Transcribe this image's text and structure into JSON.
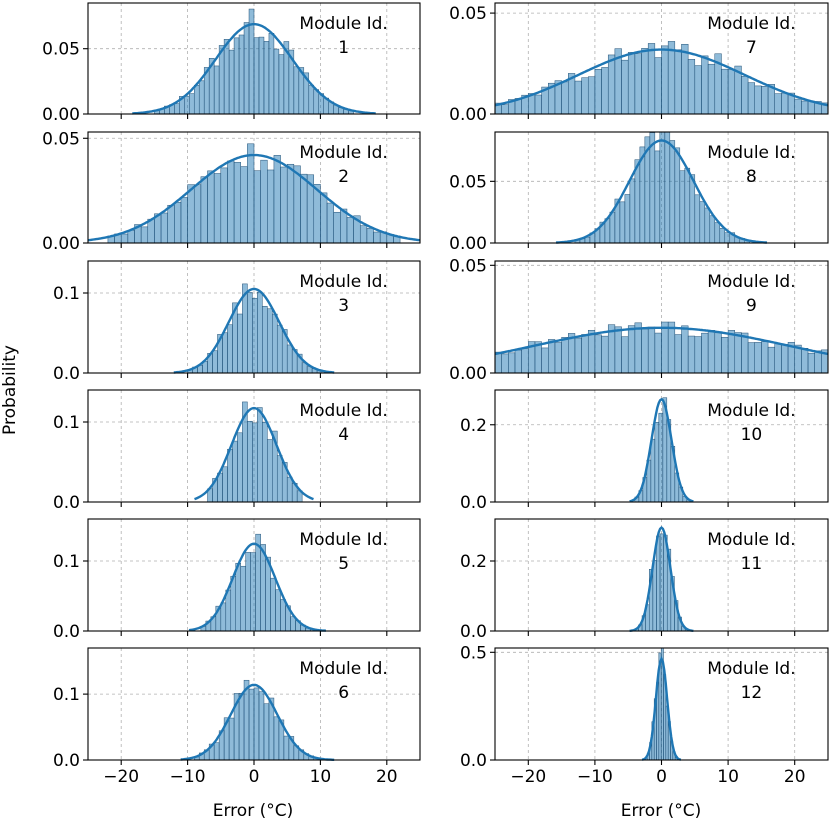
{
  "figure": {
    "y_label": "Probability",
    "x_label": "Error (°C)"
  },
  "chart_data": {
    "type": "histogram-grid",
    "x_range": [
      -25,
      25
    ],
    "x_ticks": [
      -20,
      -10,
      0,
      10,
      20
    ],
    "x_tick_labels": [
      "−20",
      "−10",
      "0",
      "10",
      "20"
    ],
    "xlabel": "Error (°C)",
    "ylabel": "Probability",
    "grid": true,
    "layout": "6 rows x 2 columns",
    "label_prefix": "Module Id.",
    "panels": [
      {
        "module": 1,
        "label_line1": "Module Id.",
        "label_line2": "1",
        "col": 0,
        "row": 0,
        "sigma": 5.8,
        "range": [
          -15,
          15
        ],
        "ylim": [
          0,
          0.085
        ],
        "yticks": [
          0.0,
          0.05
        ],
        "ytick_labels": [
          "0.00",
          "0.05"
        ]
      },
      {
        "module": 2,
        "label_line1": "Module Id.",
        "label_line2": "2",
        "col": 0,
        "row": 1,
        "sigma": 9.5,
        "range": [
          -22,
          22
        ],
        "ylim": [
          0,
          0.053
        ],
        "yticks": [
          0.0,
          0.05
        ],
        "ytick_labels": [
          "0.00",
          "0.05"
        ]
      },
      {
        "module": 3,
        "label_line1": "Module Id.",
        "label_line2": "3",
        "col": 0,
        "row": 2,
        "sigma": 3.8,
        "range": [
          -10,
          10
        ],
        "ylim": [
          0,
          0.14
        ],
        "yticks": [
          0.0,
          0.1
        ],
        "ytick_labels": [
          "0.0",
          "0.1"
        ]
      },
      {
        "module": 4,
        "label_line1": "Module Id.",
        "label_line2": "4",
        "col": 0,
        "row": 3,
        "sigma": 3.4,
        "range": [
          -7,
          7
        ],
        "ylim": [
          0,
          0.14
        ],
        "yticks": [
          0.0,
          0.1
        ],
        "ytick_labels": [
          "0.0",
          "0.1"
        ]
      },
      {
        "module": 5,
        "label_line1": "Module Id.",
        "label_line2": "5",
        "col": 0,
        "row": 4,
        "sigma": 3.2,
        "range": [
          -8,
          9
        ],
        "ylim": [
          0,
          0.16
        ],
        "yticks": [
          0.0,
          0.1
        ],
        "ytick_labels": [
          "0.0",
          "0.1"
        ]
      },
      {
        "module": 6,
        "label_line1": "Module Id.",
        "label_line2": "6",
        "col": 0,
        "row": 5,
        "sigma": 3.5,
        "range": [
          -9,
          10
        ],
        "ylim": [
          0,
          0.17
        ],
        "yticks": [
          0.0,
          0.1
        ],
        "ytick_labels": [
          "0.0",
          "0.1"
        ]
      },
      {
        "module": 7,
        "label_line1": "Module Id.",
        "label_line2": "7",
        "col": 1,
        "row": 0,
        "sigma": 12.5,
        "range": [
          -25,
          25
        ],
        "ylim": [
          0,
          0.055
        ],
        "yticks": [
          0.0,
          0.05
        ],
        "ytick_labels": [
          "0.00",
          "0.05"
        ]
      },
      {
        "module": 8,
        "label_line1": "Module Id.",
        "label_line2": "8",
        "col": 1,
        "row": 1,
        "sigma": 4.8,
        "range": [
          -13,
          13
        ],
        "ylim": [
          0,
          0.09
        ],
        "yticks": [
          0.0,
          0.05
        ],
        "ytick_labels": [
          "0.00",
          "0.05"
        ]
      },
      {
        "module": 9,
        "label_line1": "Module Id.",
        "label_line2": "9",
        "col": 1,
        "row": 2,
        "sigma": 19.0,
        "range": [
          -25,
          25
        ],
        "ylim": [
          0,
          0.052
        ],
        "yticks": [
          0.0,
          0.05
        ],
        "ytick_labels": [
          "0.00",
          "0.05"
        ]
      },
      {
        "module": 10,
        "label_line1": "Module Id.",
        "label_line2": "10",
        "col": 1,
        "row": 3,
        "sigma": 1.5,
        "range": [
          -4,
          4
        ],
        "ylim": [
          0,
          0.29
        ],
        "yticks": [
          0.0,
          0.2
        ],
        "ytick_labels": [
          "0.0",
          "0.2"
        ]
      },
      {
        "module": 11,
        "label_line1": "Module Id.",
        "label_line2": "11",
        "col": 1,
        "row": 4,
        "sigma": 1.35,
        "range": [
          -4,
          4
        ],
        "ylim": [
          0,
          0.32
        ],
        "yticks": [
          0.0,
          0.2
        ],
        "ytick_labels": [
          "0.0",
          "0.2"
        ]
      },
      {
        "module": 12,
        "label_line1": "Module Id.",
        "label_line2": "12",
        "col": 1,
        "row": 5,
        "sigma": 0.85,
        "range": [
          -2.5,
          2.5
        ],
        "ylim": [
          0,
          0.52
        ],
        "yticks": [
          0.0,
          0.5
        ],
        "ytick_labels": [
          "0.0",
          "0.5"
        ]
      }
    ]
  }
}
